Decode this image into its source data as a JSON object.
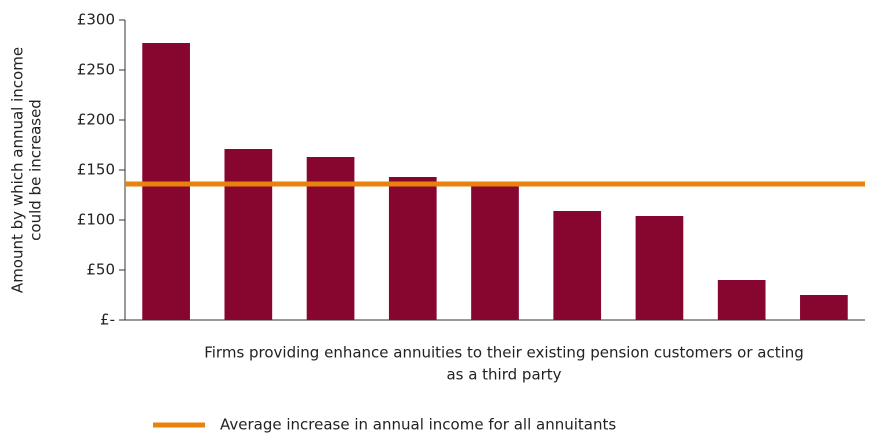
{
  "chart_data": {
    "type": "bar",
    "y_label": [
      "Amount by which annual income",
      "could be increased"
    ],
    "x_label": [
      "Firms providing enhance annuities to their existing pension customers or acting",
      "as a third party"
    ],
    "categories": [
      null,
      null,
      null,
      null,
      null,
      null,
      null,
      null,
      null
    ],
    "values": [
      277,
      171,
      163,
      143,
      134,
      109,
      104,
      40,
      25
    ],
    "color": "#870630",
    "reference_line": {
      "name": "Average increase in annual income for all annuitants",
      "value": 136,
      "color": "#e8820c"
    },
    "ylim": [
      0,
      300
    ],
    "yticks": [
      {
        "value": 0,
        "label": "£-"
      },
      {
        "value": 50,
        "label": "£50"
      },
      {
        "value": 100,
        "label": "£100"
      },
      {
        "value": 150,
        "label": "£150"
      },
      {
        "value": 200,
        "label": "£200"
      },
      {
        "value": 250,
        "label": "£250"
      },
      {
        "value": 300,
        "label": "£300"
      }
    ],
    "grid": false
  }
}
